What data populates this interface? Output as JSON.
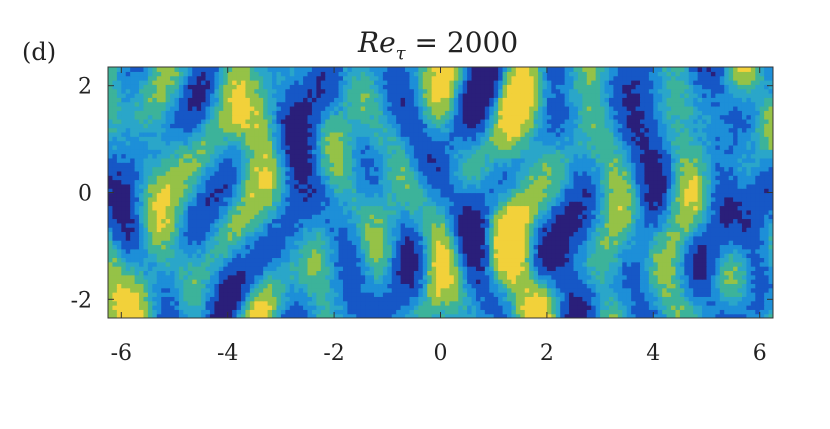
{
  "chart_data": {
    "type": "heatmap",
    "panel_label": "(d)",
    "title": {
      "base": "Re",
      "subscript": "τ",
      "rest": " = 2000"
    },
    "xlim": [
      -6.25,
      6.25
    ],
    "ylim": [
      -2.35,
      2.35
    ],
    "x_ticks": [
      -6,
      -4,
      -2,
      0,
      2,
      4,
      6
    ],
    "x_tick_labels": [
      "-6",
      "-4",
      "-2",
      "0",
      "2",
      "4",
      "6"
    ],
    "y_ticks": [
      -2,
      0,
      2
    ],
    "y_tick_labels": [
      "-2",
      "0",
      "2"
    ],
    "colormap": [
      "#2a1f7a",
      "#1657c6",
      "#1d8fd8",
      "#2aa6c9",
      "#3cb39a",
      "#95c247",
      "#f2d13a"
    ],
    "levels": 7,
    "xlabel": "",
    "ylabel": ""
  }
}
